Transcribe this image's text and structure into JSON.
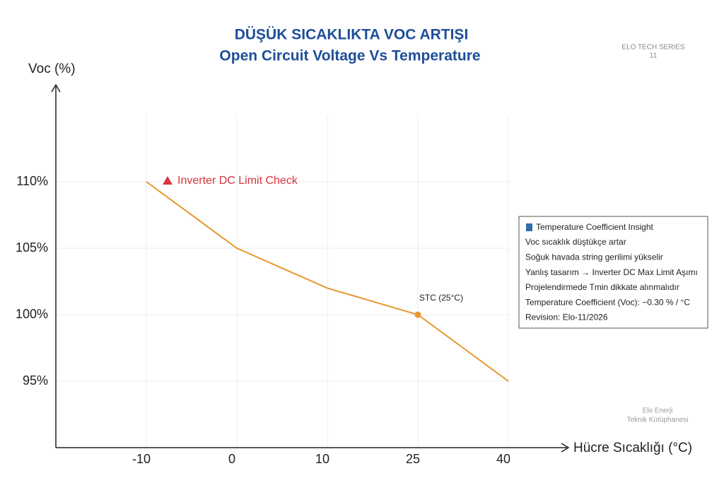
{
  "chart_data": {
    "type": "line",
    "title": "DÜŞÜK SICAKLIKTA VOC ARTIŞI",
    "subtitle": "Open Circuit Voltage Vs Temperature",
    "y_label": "Voc (%)",
    "x_label": "Hücre Sıcaklığı (°C)",
    "categories": [
      "-10",
      "0",
      "10",
      "25",
      "40"
    ],
    "values": [
      110,
      105,
      102,
      100,
      95
    ],
    "color": "#e8962e",
    "ylim": [
      90,
      115
    ],
    "yticks": [
      {
        "value": 95,
        "label": "95%"
      },
      {
        "value": 100,
        "label": "100%"
      },
      {
        "value": 105,
        "label": "105%"
      },
      {
        "value": 110,
        "label": "110%"
      }
    ],
    "grid": true,
    "warning": "Inverter DC Limit Check",
    "marker_label": {
      "text": "STC (25°C)",
      "category": "25"
    },
    "insight": {
      "title": "Temperature Coefficient Insight",
      "lines": [
        "Voc sıcaklık düştükçe artar",
        "Soğuk havada string gerilimi yükselir",
        "Yanlış tasarım → Inverter DC Max Limit Aşımı",
        "Projelendirmede  Tmin dikkate alınmalıdır",
        "Temperature Coefficient (Voc): −0.30 % / °C",
        "Revision: Elo-11/2026"
      ]
    }
  },
  "branding": {
    "series": "ELO TECH SERIES",
    "number": 11,
    "footer": [
      "Elo Enerji",
      "Teknik Kütüphanesi"
    ]
  }
}
